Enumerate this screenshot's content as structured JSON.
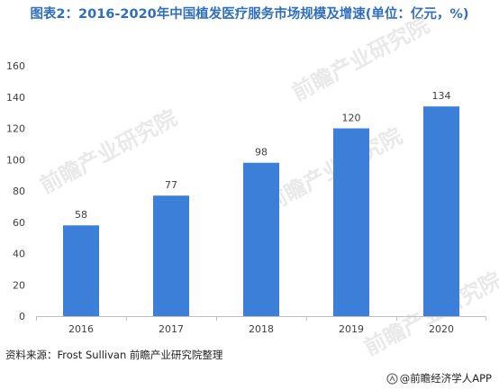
{
  "title": "图表2：2016-2020年中国植发医疗服务市场规模及增速(单位：亿元，%)",
  "source": "资料来源：Frost Sullivan 前瞻产业研究院整理",
  "brand": "@前瞻经济学人APP",
  "watermark": "前瞻产业研究院",
  "colors": {
    "bar": "#3b7fd9",
    "title": "#2f6fbe",
    "axis": "#bfbfbf",
    "label": "#404040"
  },
  "chart_data": {
    "type": "bar",
    "title": "图表2：2016-2020年中国植发医疗服务市场规模及增速(单位：亿元，%)",
    "categories": [
      "2016",
      "2017",
      "2018",
      "2019",
      "2020"
    ],
    "values": [
      58,
      77,
      98,
      120,
      134
    ],
    "data_labels": [
      "58",
      "77",
      "98",
      "120",
      "134"
    ],
    "y_ticks": [
      0,
      20,
      40,
      60,
      80,
      100,
      120,
      140,
      160
    ],
    "ylim": [
      0,
      160
    ],
    "xlabel": "",
    "ylabel": "",
    "grid": false,
    "legend": "none"
  }
}
